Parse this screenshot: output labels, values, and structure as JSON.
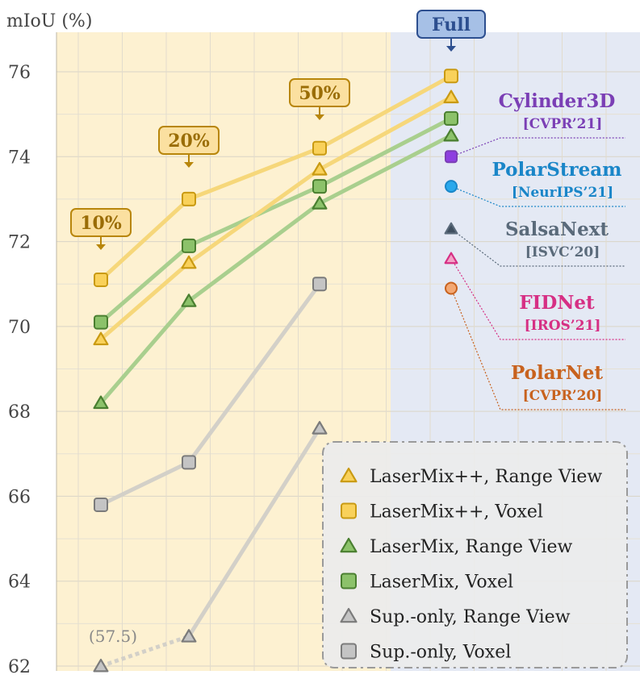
{
  "chart_data": {
    "type": "line",
    "ylabel": "mIoU (%)",
    "ylim": [
      62,
      76
    ],
    "yticks": [
      62,
      64,
      66,
      68,
      70,
      72,
      74,
      76
    ],
    "grid": true,
    "categories": [
      "10%",
      "20%",
      "50%",
      "Full"
    ],
    "series": [
      {
        "name": "LaserMix++, Range View",
        "marker": "triangle",
        "color": "#e8b520",
        "line": "#f6d77a",
        "values": [
          69.7,
          71.5,
          73.7,
          75.4
        ]
      },
      {
        "name": "LaserMix++, Voxel",
        "marker": "square",
        "color": "#e8b520",
        "line": "#f6d77a",
        "values": [
          71.1,
          73.0,
          74.2,
          75.9
        ]
      },
      {
        "name": "LaserMix, Range View",
        "marker": "triangle",
        "color": "#5c9a3f",
        "line": "#a9cf8e",
        "values": [
          68.2,
          70.6,
          72.9,
          74.5
        ]
      },
      {
        "name": "LaserMix, Voxel",
        "marker": "square",
        "color": "#5c9a3f",
        "line": "#a9cf8e",
        "values": [
          70.1,
          71.9,
          73.3,
          74.9
        ]
      },
      {
        "name": "Sup.-only, Range View",
        "marker": "triangle",
        "color": "#8c8c8c",
        "line": "#d3d0c8",
        "values": [
          57.5,
          62.7,
          67.6,
          null
        ],
        "note_label": "(57.5)"
      },
      {
        "name": "Sup.-only, Voxel",
        "marker": "square",
        "color": "#8c8c8c",
        "line": "#d3d0c8",
        "values": [
          65.8,
          66.8,
          71.0,
          null
        ]
      }
    ],
    "baselines": [
      {
        "name": "Cylinder3D",
        "venue": "[CVPR’21]",
        "value": 74.0,
        "marker": "square",
        "color": "#7b3fb5"
      },
      {
        "name": "PolarStream",
        "venue": "[NeurIPS’21]",
        "value": 73.3,
        "marker": "circle",
        "color": "#1a86c8"
      },
      {
        "name": "SalsaNext",
        "venue": "[ISVC’20]",
        "value": 72.3,
        "marker": "triangle",
        "color": "#5a6a7a"
      },
      {
        "name": "FIDNet",
        "venue": "[IROS’21]",
        "value": 71.6,
        "marker": "triangle",
        "color": "#d62f84"
      },
      {
        "name": "PolarNet",
        "venue": "[CVPR’20]",
        "value": 70.9,
        "marker": "circle",
        "color": "#c8621e"
      }
    ],
    "legend_position": "bottom-right"
  }
}
